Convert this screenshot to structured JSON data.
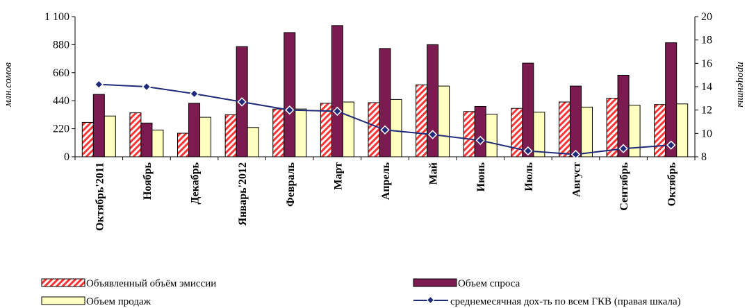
{
  "chart_data": {
    "type": "bar",
    "categories": [
      "Октябрь'2011",
      "Ноябрь",
      "Декабрь",
      "Январь'2012",
      "Февраль",
      "Март",
      "Апрель",
      "Май",
      "Июнь",
      "Июль",
      "Август",
      "Сентябрь",
      "Октябрь"
    ],
    "series": [
      {
        "name": "Объявленный объём эмиссии",
        "kind": "bar",
        "axis": "left",
        "color": "#ff3333",
        "pattern": "hatch",
        "values": [
          270,
          345,
          185,
          330,
          375,
          420,
          425,
          565,
          355,
          380,
          430,
          460,
          410
        ]
      },
      {
        "name": "Объем спроса",
        "kind": "bar",
        "axis": "left",
        "color": "#7b1b4f",
        "values": [
          490,
          265,
          420,
          865,
          975,
          1030,
          850,
          880,
          395,
          735,
          555,
          640,
          895
        ]
      },
      {
        "name": "Объем продаж",
        "kind": "bar",
        "axis": "left",
        "color": "#ffffc0",
        "values": [
          320,
          210,
          310,
          230,
          375,
          430,
          450,
          555,
          335,
          350,
          390,
          405,
          415
        ]
      },
      {
        "name": "среднемесячная дох-ть по всем ГКВ (правая шкала)",
        "kind": "line",
        "axis": "right",
        "color": "#1f2a7a",
        "values": [
          14.2,
          14.0,
          13.4,
          12.7,
          12.0,
          11.9,
          10.3,
          9.9,
          9.4,
          8.5,
          8.2,
          8.7,
          9.0
        ]
      }
    ],
    "ylabel": "млн.сомов",
    "y2label": "проценты",
    "ylim": [
      0,
      1100
    ],
    "yticks": [
      "0",
      "220",
      "440",
      "660",
      "880",
      "1 100"
    ],
    "y2lim": [
      8,
      20
    ],
    "y2ticks": [
      "8",
      "10",
      "12",
      "14",
      "16",
      "18",
      "20"
    ],
    "grid": false,
    "legend_position": "bottom"
  }
}
